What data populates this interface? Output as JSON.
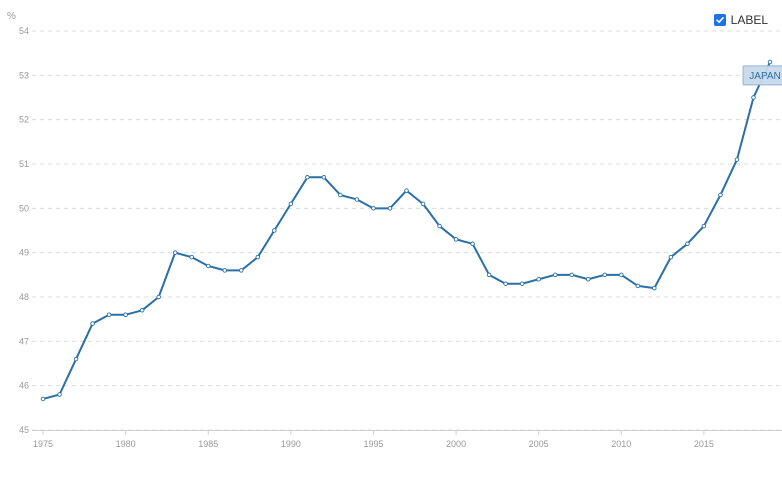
{
  "legend": {
    "label": "LABEL",
    "checked": true
  },
  "colors": {
    "series": "#2a6fa6",
    "grid": "#dcdcdc",
    "tick_text": "#999999",
    "badge_fill": "#c9d9ea",
    "badge_stroke": "#8fb3d6",
    "checkbox": "#1a73e8"
  },
  "chart_data": {
    "type": "line",
    "title": "",
    "xlabel": "",
    "ylabel": "%",
    "xlim": [
      1975,
      2019
    ],
    "ylim": [
      45,
      54
    ],
    "xticks": [
      1975,
      1980,
      1985,
      1990,
      1995,
      2000,
      2005,
      2010,
      2015
    ],
    "yticks": [
      45,
      46,
      47,
      48,
      49,
      50,
      51,
      52,
      53,
      54
    ],
    "grid": true,
    "series": [
      {
        "name": "JAPAN",
        "x": [
          1975,
          1976,
          1977,
          1978,
          1979,
          1980,
          1981,
          1982,
          1983,
          1984,
          1985,
          1986,
          1987,
          1988,
          1989,
          1990,
          1991,
          1992,
          1993,
          1994,
          1995,
          1996,
          1997,
          1998,
          1999,
          2000,
          2001,
          2002,
          2003,
          2004,
          2005,
          2006,
          2007,
          2008,
          2009,
          2010,
          2011,
          2012,
          2013,
          2014,
          2015,
          2016,
          2017,
          2018,
          2019
        ],
        "y": [
          45.7,
          45.8,
          46.6,
          47.4,
          47.6,
          47.6,
          47.7,
          48.0,
          49.0,
          48.9,
          48.7,
          48.6,
          48.6,
          48.9,
          49.5,
          50.1,
          50.7,
          50.7,
          50.3,
          50.2,
          50.0,
          50.0,
          50.4,
          50.1,
          49.6,
          49.3,
          49.2,
          48.5,
          48.3,
          48.3,
          48.4,
          48.5,
          48.5,
          48.4,
          48.5,
          48.5,
          48.25,
          48.2,
          48.9,
          49.2,
          49.6,
          50.3,
          51.1,
          52.5,
          53.3
        ]
      }
    ],
    "annotations": [
      {
        "text": "JAPAN",
        "x": 2018.7,
        "y": 53.0
      }
    ]
  }
}
